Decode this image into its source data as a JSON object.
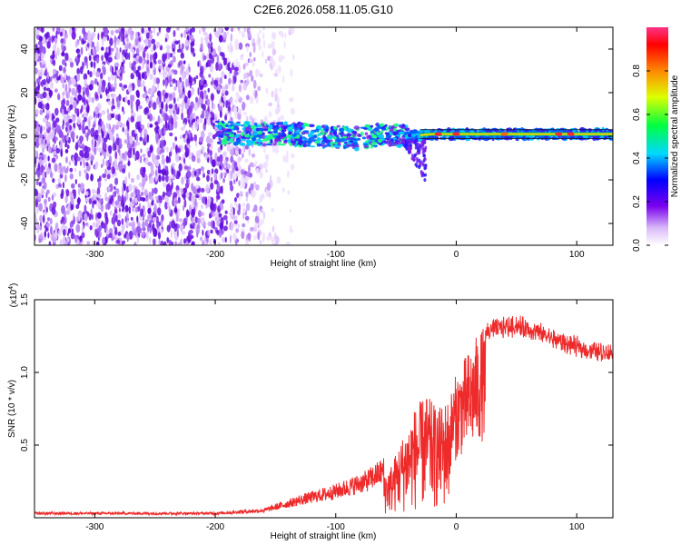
{
  "title": "C2E6.2026.058.11.05.G10",
  "chart_data": [
    {
      "type": "heatmap",
      "name": "spectrogram",
      "xlabel": "Height of straight line (km)",
      "ylabel": "Frequency (Hz)",
      "xlim": [
        -350,
        130
      ],
      "ylim": [
        -50,
        50
      ],
      "x_ticks": [
        -300,
        -200,
        -100,
        0,
        100
      ],
      "x_tick_labels": [
        "-300",
        "-200",
        "-100",
        "0",
        "100"
      ],
      "y_ticks": [
        -40,
        -20,
        0,
        20,
        40
      ],
      "y_tick_labels": [
        "-40",
        "-20",
        "0",
        "20",
        "40"
      ],
      "colorbar": {
        "label": "Normalized spectral amplitude",
        "range": [
          0.0,
          1.0
        ],
        "ticks": [
          0.0,
          0.2,
          0.4,
          0.6,
          0.8
        ],
        "tick_labels": [
          "0.0",
          "0.2",
          "0.4",
          "0.6",
          "0.8"
        ]
      },
      "ridge": [
        {
          "x": -200,
          "y": 2
        },
        {
          "x": -170,
          "y": 1
        },
        {
          "x": -140,
          "y": 1
        },
        {
          "x": -110,
          "y": 0
        },
        {
          "x": -80,
          "y": -1
        },
        {
          "x": -60,
          "y": 1
        },
        {
          "x": -40,
          "y": 0
        },
        {
          "x": -20,
          "y": 1
        },
        {
          "x": 0,
          "y": 1
        },
        {
          "x": 50,
          "y": 1
        },
        {
          "x": 130,
          "y": 1
        }
      ]
    },
    {
      "type": "line",
      "name": "snr",
      "xlabel": "Height of straight line (km)",
      "ylabel": "SNR (10 * v/v)",
      "y_scale_label": "(x10",
      "y_scale_exponent": "4",
      "xlim": [
        -350,
        130
      ],
      "ylim": [
        0,
        1.5
      ],
      "x_ticks": [
        -300,
        -200,
        -100,
        0,
        100
      ],
      "x_tick_labels": [
        "-300",
        "-200",
        "-100",
        "0",
        "100"
      ],
      "y_ticks": [
        0.5,
        1.0,
        1.5
      ],
      "y_tick_labels": [
        "0.5",
        "1.0",
        "1.5"
      ],
      "color": "#ee2a2a",
      "envelope": [
        {
          "x": -350,
          "y": 0.03
        },
        {
          "x": -200,
          "y": 0.03
        },
        {
          "x": -160,
          "y": 0.05
        },
        {
          "x": -130,
          "y": 0.12
        },
        {
          "x": -100,
          "y": 0.18
        },
        {
          "x": -75,
          "y": 0.25
        },
        {
          "x": -55,
          "y": 0.35
        },
        {
          "x": -45,
          "y": 0.55
        },
        {
          "x": -35,
          "y": 0.75
        },
        {
          "x": -25,
          "y": 0.85
        },
        {
          "x": -15,
          "y": 0.75
        },
        {
          "x": -5,
          "y": 0.85
        },
        {
          "x": 0,
          "y": 1.0
        },
        {
          "x": 10,
          "y": 1.15
        },
        {
          "x": 20,
          "y": 1.3
        },
        {
          "x": 30,
          "y": 1.35
        },
        {
          "x": 50,
          "y": 1.38
        },
        {
          "x": 70,
          "y": 1.32
        },
        {
          "x": 90,
          "y": 1.25
        },
        {
          "x": 110,
          "y": 1.2
        },
        {
          "x": 130,
          "y": 1.18
        }
      ]
    }
  ]
}
